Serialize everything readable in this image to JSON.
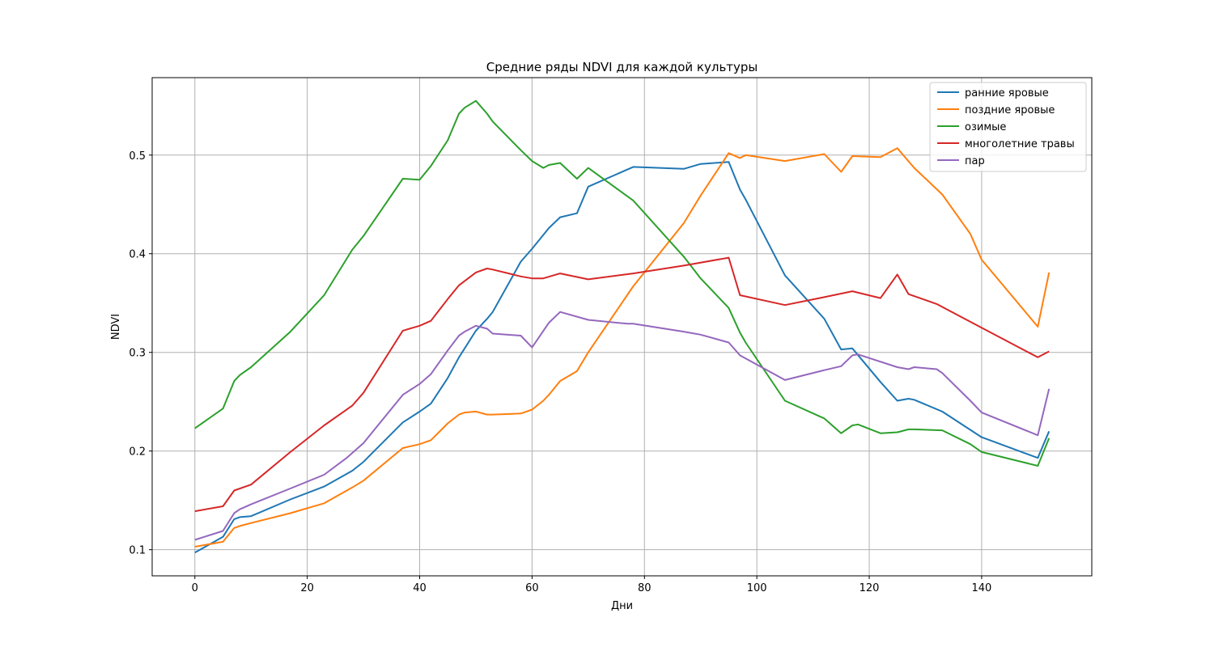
{
  "chart_data": {
    "type": "line",
    "title": "Средние ряды NDVI для каждой культуры",
    "xlabel": "Дни",
    "ylabel": "NDVI",
    "xlim": [
      -7.6,
      159.6
    ],
    "ylim": [
      0.0735,
      0.5785
    ],
    "xticks": [
      0,
      20,
      40,
      60,
      80,
      100,
      120,
      140
    ],
    "xtick_labels": [
      "0",
      "20",
      "40",
      "60",
      "80",
      "100",
      "120",
      "140"
    ],
    "yticks": [
      0.1,
      0.2,
      0.3,
      0.4,
      0.5
    ],
    "ytick_labels": [
      "0.1",
      "0.2",
      "0.3",
      "0.4",
      "0.5"
    ],
    "grid": true,
    "legend_position": "top-right",
    "series": [
      {
        "name": "ранние яровые",
        "color": "#1f77b4",
        "x": [
          0,
          5,
          7,
          8,
          10,
          17,
          23,
          28,
          30,
          37,
          40,
          42,
          45,
          47,
          48,
          50,
          52,
          53,
          58,
          60,
          63,
          65,
          68,
          70,
          78,
          87,
          90,
          95,
          97,
          98,
          105,
          112,
          115,
          117,
          122,
          125,
          127,
          128,
          133,
          140,
          150,
          152
        ],
        "y": [
          0.097,
          0.113,
          0.131,
          0.133,
          0.134,
          0.151,
          0.164,
          0.18,
          0.189,
          0.229,
          0.24,
          0.248,
          0.274,
          0.295,
          0.304,
          0.322,
          0.334,
          0.341,
          0.392,
          0.405,
          0.426,
          0.437,
          0.441,
          0.468,
          0.488,
          0.486,
          0.491,
          0.493,
          0.465,
          0.455,
          0.378,
          0.334,
          0.303,
          0.304,
          0.27,
          0.251,
          0.253,
          0.252,
          0.24,
          0.214,
          0.193,
          0.22
        ]
      },
      {
        "name": "поздние яровые",
        "color": "#ff7f0e",
        "x": [
          0,
          5,
          7,
          8,
          10,
          17,
          23,
          28,
          30,
          37,
          40,
          42,
          45,
          47,
          48,
          50,
          52,
          53,
          58,
          60,
          62,
          63,
          65,
          68,
          70,
          78,
          87,
          90,
          95,
          97,
          98,
          105,
          112,
          115,
          117,
          122,
          125,
          128,
          133,
          138,
          140,
          150,
          152
        ],
        "y": [
          0.103,
          0.108,
          0.122,
          0.124,
          0.127,
          0.137,
          0.147,
          0.163,
          0.17,
          0.203,
          0.207,
          0.211,
          0.228,
          0.237,
          0.239,
          0.24,
          0.237,
          0.237,
          0.238,
          0.242,
          0.251,
          0.257,
          0.271,
          0.281,
          0.3,
          0.367,
          0.431,
          0.459,
          0.502,
          0.497,
          0.5,
          0.494,
          0.501,
          0.483,
          0.499,
          0.498,
          0.507,
          0.487,
          0.46,
          0.42,
          0.394,
          0.326,
          0.381
        ]
      },
      {
        "name": "озимые",
        "color": "#2ca02c",
        "x": [
          0,
          5,
          7,
          8,
          10,
          17,
          23,
          28,
          30,
          37,
          40,
          42,
          45,
          47,
          48,
          50,
          52,
          53,
          58,
          60,
          62,
          63,
          65,
          68,
          70,
          78,
          87,
          90,
          95,
          97,
          98,
          105,
          112,
          115,
          117,
          118,
          122,
          125,
          127,
          128,
          133,
          138,
          140,
          150,
          152
        ],
        "y": [
          0.223,
          0.243,
          0.271,
          0.277,
          0.285,
          0.321,
          0.358,
          0.404,
          0.418,
          0.476,
          0.475,
          0.489,
          0.515,
          0.542,
          0.548,
          0.555,
          0.542,
          0.534,
          0.505,
          0.494,
          0.487,
          0.49,
          0.492,
          0.476,
          0.487,
          0.454,
          0.397,
          0.375,
          0.345,
          0.32,
          0.31,
          0.251,
          0.233,
          0.218,
          0.226,
          0.227,
          0.218,
          0.219,
          0.222,
          0.222,
          0.221,
          0.207,
          0.199,
          0.185,
          0.213
        ]
      },
      {
        "name": "многолетние травы",
        "color": "#d62728",
        "x": [
          0,
          5,
          7,
          10,
          17,
          23,
          28,
          30,
          37,
          40,
          42,
          45,
          47,
          50,
          52,
          53,
          58,
          60,
          62,
          65,
          70,
          78,
          87,
          95,
          97,
          105,
          112,
          117,
          122,
          125,
          127,
          132,
          140,
          150,
          152
        ],
        "y": [
          0.139,
          0.144,
          0.16,
          0.166,
          0.199,
          0.226,
          0.246,
          0.259,
          0.322,
          0.327,
          0.332,
          0.354,
          0.368,
          0.381,
          0.385,
          0.384,
          0.377,
          0.375,
          0.375,
          0.38,
          0.374,
          0.38,
          0.388,
          0.396,
          0.358,
          0.348,
          0.356,
          0.362,
          0.355,
          0.379,
          0.359,
          0.349,
          0.325,
          0.295,
          0.301
        ]
      },
      {
        "name": "пар",
        "color": "#9467bd",
        "x": [
          0,
          5,
          7,
          8,
          10,
          17,
          23,
          27,
          30,
          37,
          40,
          42,
          45,
          47,
          48,
          50,
          52,
          53,
          58,
          60,
          63,
          65,
          70,
          77,
          78,
          87,
          90,
          95,
          97,
          105,
          112,
          115,
          117,
          118,
          125,
          127,
          128,
          132,
          133,
          138,
          140,
          150,
          152
        ],
        "y": [
          0.11,
          0.119,
          0.137,
          0.141,
          0.146,
          0.162,
          0.176,
          0.193,
          0.208,
          0.257,
          0.268,
          0.278,
          0.302,
          0.317,
          0.321,
          0.327,
          0.324,
          0.319,
          0.317,
          0.305,
          0.33,
          0.341,
          0.333,
          0.329,
          0.329,
          0.321,
          0.318,
          0.31,
          0.297,
          0.272,
          0.282,
          0.286,
          0.297,
          0.298,
          0.285,
          0.283,
          0.285,
          0.283,
          0.279,
          0.251,
          0.239,
          0.216,
          0.263
        ]
      }
    ]
  }
}
